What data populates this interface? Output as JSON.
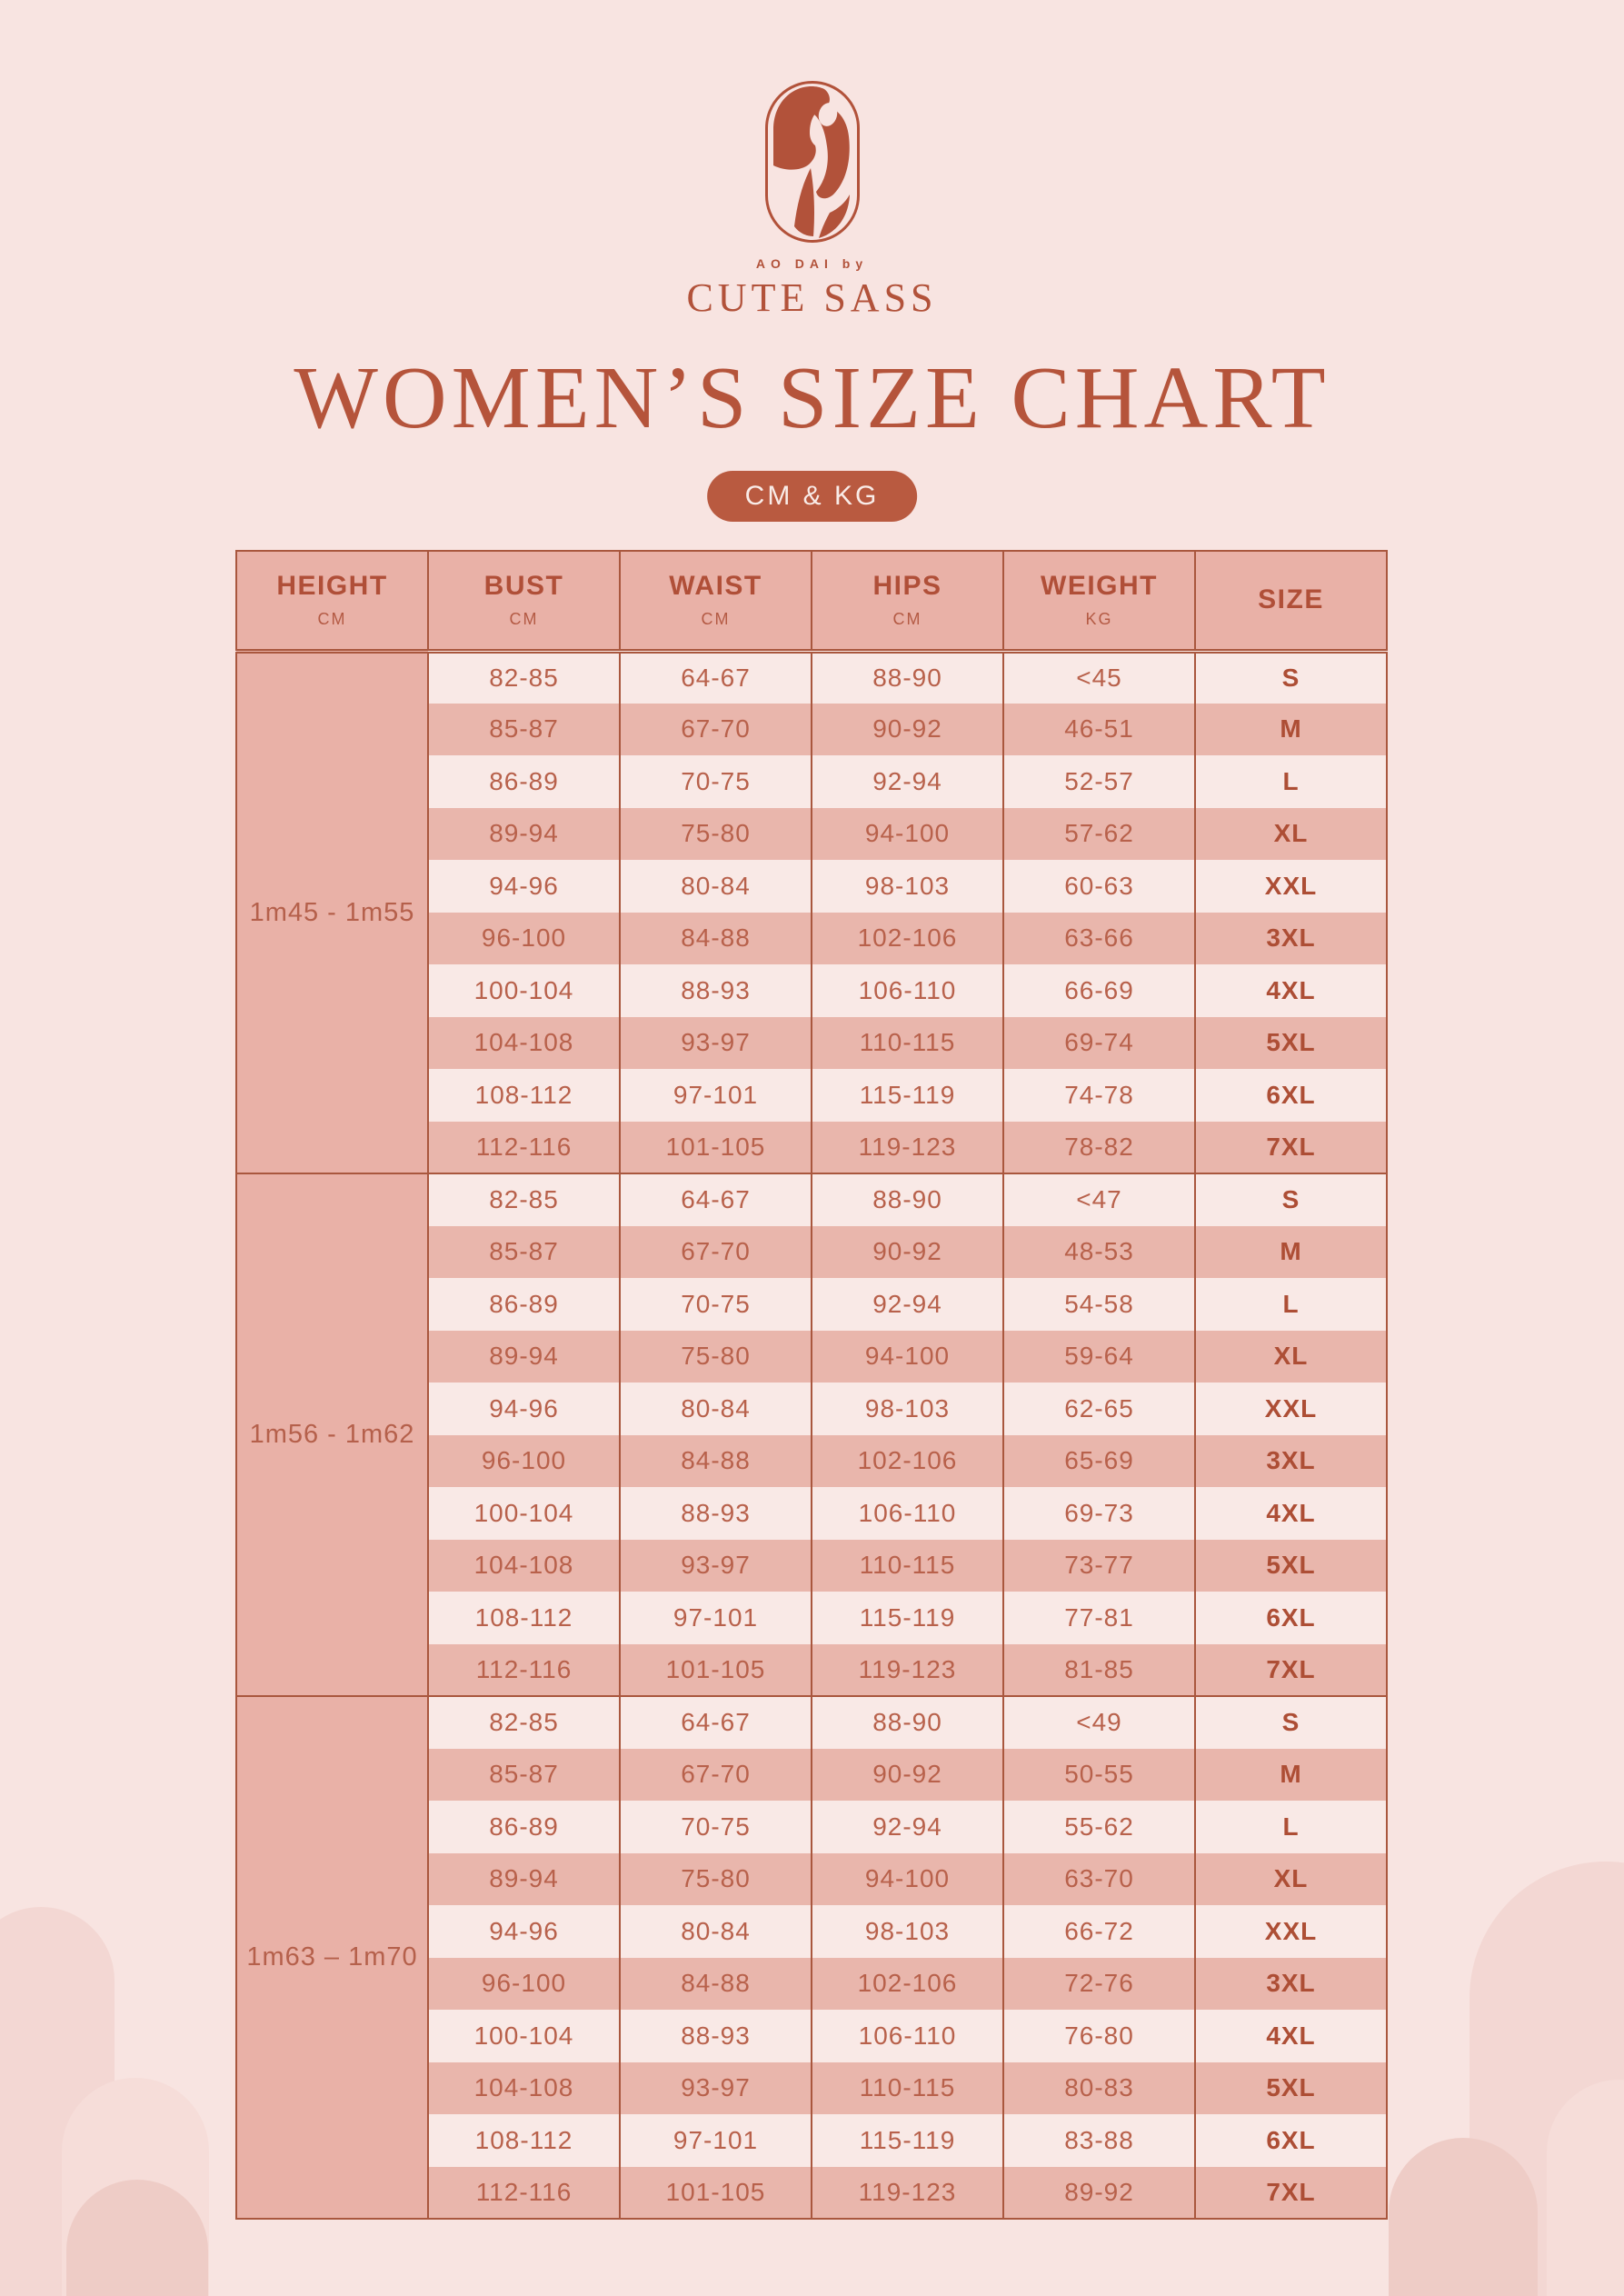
{
  "brand": {
    "tagline": "AO DAI by",
    "name": "CUTE SASS"
  },
  "title": "WOMEN’S SIZE CHART",
  "unit_badge": "CM & KG",
  "colors": {
    "background": "#f8e4e1",
    "terracotta": "#b5543b",
    "badge_bg": "#b95a40",
    "badge_text": "#f9ece8",
    "table_border": "#a9573e",
    "header_bg": "#e9b1a7",
    "row_dark": "#e9b6ac",
    "row_light": "#f9e9e6",
    "cell_text": "#b8614b"
  },
  "table": {
    "columns": [
      {
        "label": "HEIGHT",
        "sub": "CM"
      },
      {
        "label": "BUST",
        "sub": "CM"
      },
      {
        "label": "WAIST",
        "sub": "CM"
      },
      {
        "label": "HIPS",
        "sub": "CM"
      },
      {
        "label": "WEIGHT",
        "sub": "KG"
      },
      {
        "label": "SIZE",
        "sub": ""
      }
    ],
    "groups": [
      {
        "height": "1m45 - 1m55",
        "rows": [
          {
            "bust": "82-85",
            "waist": "64-67",
            "hips": "88-90",
            "weight": "<45",
            "size": "S"
          },
          {
            "bust": "85-87",
            "waist": "67-70",
            "hips": "90-92",
            "weight": "46-51",
            "size": "M"
          },
          {
            "bust": "86-89",
            "waist": "70-75",
            "hips": "92-94",
            "weight": "52-57",
            "size": "L"
          },
          {
            "bust": "89-94",
            "waist": "75-80",
            "hips": "94-100",
            "weight": "57-62",
            "size": "XL"
          },
          {
            "bust": "94-96",
            "waist": "80-84",
            "hips": "98-103",
            "weight": "60-63",
            "size": "XXL"
          },
          {
            "bust": "96-100",
            "waist": "84-88",
            "hips": "102-106",
            "weight": "63-66",
            "size": "3XL"
          },
          {
            "bust": "100-104",
            "waist": "88-93",
            "hips": "106-110",
            "weight": "66-69",
            "size": "4XL"
          },
          {
            "bust": "104-108",
            "waist": "93-97",
            "hips": "110-115",
            "weight": "69-74",
            "size": "5XL"
          },
          {
            "bust": "108-112",
            "waist": "97-101",
            "hips": "115-119",
            "weight": "74-78",
            "size": "6XL"
          },
          {
            "bust": "112-116",
            "waist": "101-105",
            "hips": "119-123",
            "weight": "78-82",
            "size": "7XL"
          }
        ]
      },
      {
        "height": "1m56 - 1m62",
        "rows": [
          {
            "bust": "82-85",
            "waist": "64-67",
            "hips": "88-90",
            "weight": "<47",
            "size": "S"
          },
          {
            "bust": "85-87",
            "waist": "67-70",
            "hips": "90-92",
            "weight": "48-53",
            "size": "M"
          },
          {
            "bust": "86-89",
            "waist": "70-75",
            "hips": "92-94",
            "weight": "54-58",
            "size": "L"
          },
          {
            "bust": "89-94",
            "waist": "75-80",
            "hips": "94-100",
            "weight": "59-64",
            "size": "XL"
          },
          {
            "bust": "94-96",
            "waist": "80-84",
            "hips": "98-103",
            "weight": "62-65",
            "size": "XXL"
          },
          {
            "bust": "96-100",
            "waist": "84-88",
            "hips": "102-106",
            "weight": "65-69",
            "size": "3XL"
          },
          {
            "bust": "100-104",
            "waist": "88-93",
            "hips": "106-110",
            "weight": "69-73",
            "size": "4XL"
          },
          {
            "bust": "104-108",
            "waist": "93-97",
            "hips": "110-115",
            "weight": "73-77",
            "size": "5XL"
          },
          {
            "bust": "108-112",
            "waist": "97-101",
            "hips": "115-119",
            "weight": "77-81",
            "size": "6XL"
          },
          {
            "bust": "112-116",
            "waist": "101-105",
            "hips": "119-123",
            "weight": "81-85",
            "size": "7XL"
          }
        ]
      },
      {
        "height": "1m63 – 1m70",
        "rows": [
          {
            "bust": "82-85",
            "waist": "64-67",
            "hips": "88-90",
            "weight": "<49",
            "size": "S"
          },
          {
            "bust": "85-87",
            "waist": "67-70",
            "hips": "90-92",
            "weight": "50-55",
            "size": "M"
          },
          {
            "bust": "86-89",
            "waist": "70-75",
            "hips": "92-94",
            "weight": "55-62",
            "size": "L"
          },
          {
            "bust": "89-94",
            "waist": "75-80",
            "hips": "94-100",
            "weight": "63-70",
            "size": "XL"
          },
          {
            "bust": "94-96",
            "waist": "80-84",
            "hips": "98-103",
            "weight": "66-72",
            "size": "XXL"
          },
          {
            "bust": "96-100",
            "waist": "84-88",
            "hips": "102-106",
            "weight": "72-76",
            "size": "3XL"
          },
          {
            "bust": "100-104",
            "waist": "88-93",
            "hips": "106-110",
            "weight": "76-80",
            "size": "4XL"
          },
          {
            "bust": "104-108",
            "waist": "93-97",
            "hips": "110-115",
            "weight": "80-83",
            "size": "5XL"
          },
          {
            "bust": "108-112",
            "waist": "97-101",
            "hips": "115-119",
            "weight": "83-88",
            "size": "6XL"
          },
          {
            "bust": "112-116",
            "waist": "101-105",
            "hips": "119-123",
            "weight": "89-92",
            "size": "7XL"
          }
        ]
      }
    ]
  }
}
